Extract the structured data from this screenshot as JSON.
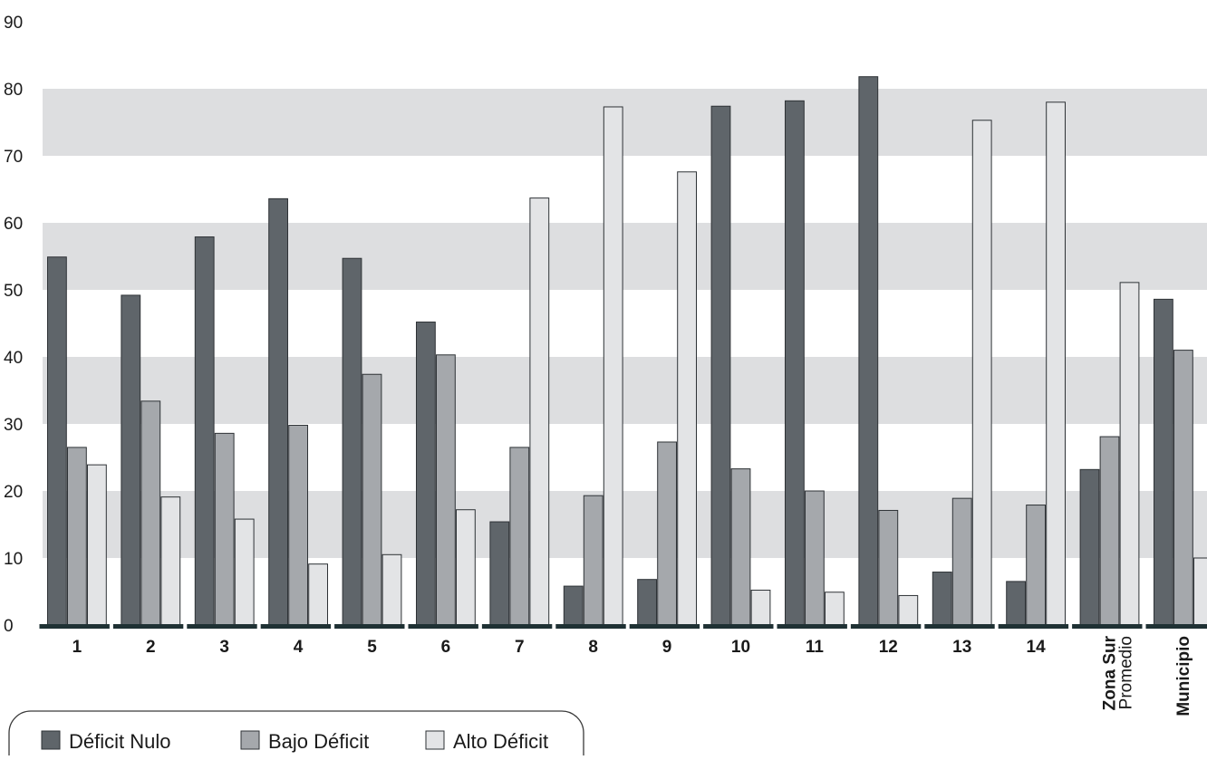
{
  "chart_data": {
    "type": "bar",
    "title": "",
    "xlabel": "",
    "ylabel": "",
    "ylim": [
      0,
      90
    ],
    "yticks": [
      0,
      10,
      20,
      30,
      40,
      50,
      60,
      70,
      80,
      90
    ],
    "grid": "alternating horizontal bands",
    "legend_position": "bottom-left",
    "categories": [
      {
        "label": "1"
      },
      {
        "label": "2"
      },
      {
        "label": "3"
      },
      {
        "label": "4"
      },
      {
        "label": "5"
      },
      {
        "label": "6"
      },
      {
        "label": "7"
      },
      {
        "label": "8"
      },
      {
        "label": "9"
      },
      {
        "label": "10"
      },
      {
        "label": "11"
      },
      {
        "label": "12"
      },
      {
        "label": "13"
      },
      {
        "label": "14"
      },
      {
        "label": "Zona Sur",
        "sublabel": "Promedio"
      },
      {
        "label": "Municipio"
      }
    ],
    "series": [
      {
        "name": "Déficit Nulo",
        "color": "#5f656a",
        "values": [
          54.9,
          49.2,
          57.9,
          63.6,
          54.7,
          45.2,
          15.4,
          5.8,
          6.8,
          77.4,
          78.2,
          81.8,
          7.9,
          6.5,
          23.2,
          48.6
        ]
      },
      {
        "name": "Bajo Déficit",
        "color": "#a5a8ac",
        "values": [
          26.5,
          33.4,
          28.6,
          29.8,
          37.4,
          40.3,
          26.5,
          19.3,
          27.3,
          23.3,
          20.0,
          17.1,
          18.9,
          17.9,
          28.1,
          41.0
        ]
      },
      {
        "name": "Alto Déficit",
        "color": "#e3e4e6",
        "values": [
          23.9,
          19.1,
          15.8,
          9.1,
          10.5,
          17.2,
          63.7,
          77.3,
          67.6,
          5.2,
          4.9,
          4.4,
          75.3,
          78.0,
          51.1,
          10.0
        ]
      }
    ]
  }
}
